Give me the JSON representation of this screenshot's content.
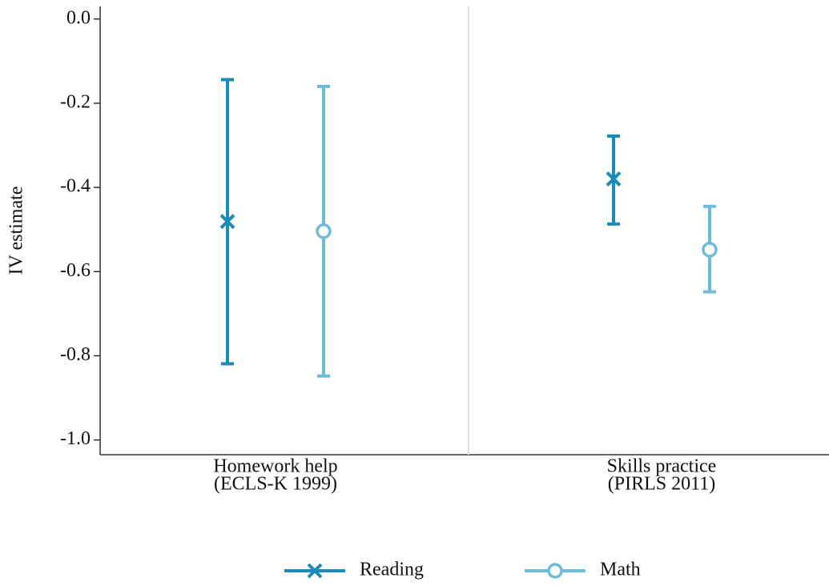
{
  "chart_data": {
    "type": "errorbar",
    "y_label": "IV estimate",
    "categories": [
      [
        "Homework help",
        "(ECLS-K 1999)"
      ],
      [
        "Skills practice",
        "(PIRLS 2011)"
      ]
    ],
    "series": [
      {
        "name": "Reading",
        "color": "#1a8ab9",
        "marker": "x",
        "values": [
          -0.481,
          -0.38
        ],
        "lower": [
          -0.819,
          -0.487
        ],
        "upper": [
          -0.144,
          -0.278
        ]
      },
      {
        "name": "Math",
        "color": "#6cbcda",
        "marker": "circle",
        "values": [
          -0.504,
          -0.548
        ],
        "lower": [
          -0.848,
          -0.648
        ],
        "upper": [
          -0.16,
          -0.445
        ]
      }
    ],
    "ylim": [
      -1.035,
      0.03
    ],
    "yticks": [
      {
        "value": 0,
        "label": "0.0"
      },
      {
        "value": -0.2,
        "label": "-0.2"
      },
      {
        "value": -0.4,
        "label": "-0.4"
      },
      {
        "value": -0.6,
        "label": "-0.6"
      },
      {
        "value": -0.8,
        "label": "-0.8"
      },
      {
        "value": -1.0,
        "label": "-1.0"
      }
    ],
    "legend": "bottom"
  }
}
